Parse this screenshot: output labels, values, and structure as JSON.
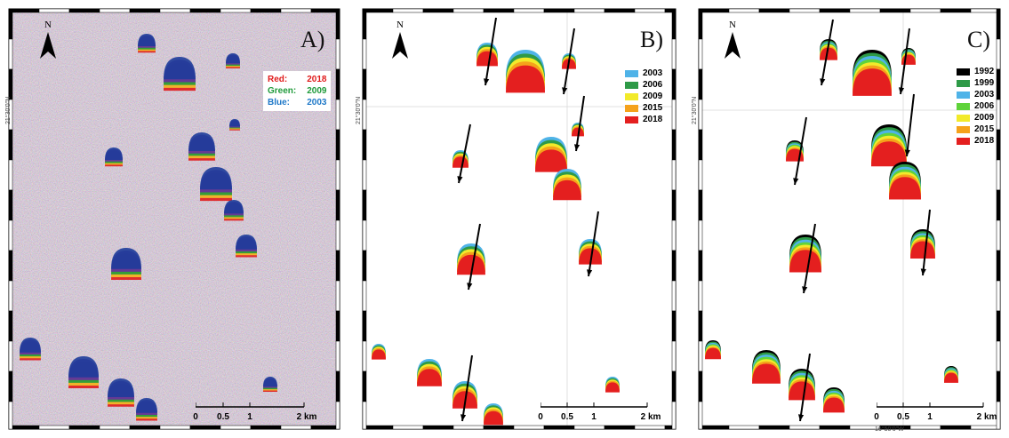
{
  "panel_a": {
    "label": "A)",
    "north": "N",
    "lat_label": "21°30'0\"N",
    "legend": [
      {
        "name": "Red:",
        "value": "2018",
        "color": "#e01b1b"
      },
      {
        "name": "Green:",
        "value": "2009",
        "color": "#1f9a3a"
      },
      {
        "name": "Blue:",
        "value": "2003",
        "color": "#1e78c8"
      }
    ],
    "scale": {
      "ticks": [
        "0",
        "0.5",
        "1",
        "2 km"
      ]
    }
  },
  "panel_b": {
    "label": "B)",
    "north": "N",
    "lat_label": "21°30'0\"N",
    "legend": [
      {
        "year": "2003",
        "color": "#4fb3e8"
      },
      {
        "year": "2006",
        "color": "#2e9a47"
      },
      {
        "year": "2009",
        "color": "#f2ea2a"
      },
      {
        "year": "2015",
        "color": "#f5a21b"
      },
      {
        "year": "2018",
        "color": "#e41f1f"
      }
    ],
    "scale": {
      "ticks": [
        "0",
        "0.5",
        "1",
        "2 km"
      ]
    }
  },
  "panel_c": {
    "label": "C)",
    "north": "N",
    "lat_label": "21°30'0\"N",
    "lon_label": "16°50'0\"W",
    "legend": [
      {
        "year": "1992",
        "color": "#000000"
      },
      {
        "year": "1999",
        "color": "#2e9a47"
      },
      {
        "year": "2003",
        "color": "#4fb3e8"
      },
      {
        "year": "2006",
        "color": "#5fd33a"
      },
      {
        "year": "2009",
        "color": "#f2ea2a"
      },
      {
        "year": "2015",
        "color": "#f5a21b"
      },
      {
        "year": "2018",
        "color": "#e41f1f"
      }
    ],
    "scale": {
      "ticks": [
        "0",
        "0.5",
        "1",
        "2 km"
      ]
    }
  }
}
